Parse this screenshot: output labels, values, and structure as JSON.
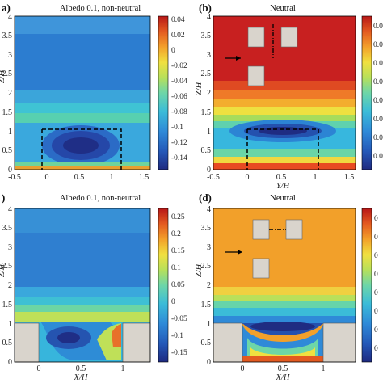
{
  "chart_data": [
    {
      "type": "heatmap",
      "panel_label": "a)",
      "title": "Albedo 0.1, non-neutral",
      "xlabel": "Y/H",
      "ylabel": "Z/H",
      "xlim": [
        -0.5,
        1.6
      ],
      "ylim": [
        0,
        4
      ],
      "xticks": [
        "-0.5",
        "0",
        "0.5",
        "1",
        "1.5"
      ],
      "yticks": [
        "0",
        "0.5",
        "1",
        "1.5",
        "2",
        "2.5",
        "3",
        "3.5",
        "4"
      ],
      "colorbar_ticks": [
        "0.04",
        "0.02",
        "0",
        "-0.02",
        "-0.04",
        "-0.06",
        "-0.08",
        "-0.1",
        "-0.12",
        "-0.14"
      ],
      "clim": [
        -0.15,
        0.05
      ]
    },
    {
      "type": "heatmap",
      "panel_label": "(b)",
      "title": "Neutral",
      "xlabel": "Y/H",
      "ylabel": "Z/H",
      "xlim": [
        -0.5,
        1.6
      ],
      "ylim": [
        0,
        4
      ],
      "xticks": [
        "-0.5",
        "0",
        "0.5",
        "1",
        "1.5"
      ],
      "yticks": [
        "0",
        "0.5",
        "1",
        "1.5",
        "2",
        "2.5",
        "3",
        "3.5",
        "4"
      ],
      "colorbar_ticks": [
        "0.0",
        "0.0",
        "0.0",
        "0.0",
        "0.0",
        "0.0",
        "0.0",
        "0.0"
      ]
    },
    {
      "type": "heatmap",
      "panel_label": ")",
      "title": "Albedo 0.1, non-neutral",
      "xlabel": "X/H",
      "ylabel": "Z/H",
      "xlim": [
        -0.5,
        1.6
      ],
      "ylim": [
        0,
        4
      ],
      "xticks": [
        "0",
        "0.5",
        "1"
      ],
      "yticks": [
        "0",
        "0.5",
        "1",
        "1.5",
        "2",
        "2.5",
        "3",
        "3.5",
        "4"
      ],
      "colorbar_ticks": [
        "0.25",
        "0.2",
        "0.15",
        "0.1",
        "0.05",
        "0",
        "-0.05",
        "-0.1",
        "-0.15"
      ],
      "clim": [
        -0.17,
        0.28
      ]
    },
    {
      "type": "heatmap",
      "panel_label": "(d)",
      "title": "Neutral",
      "xlabel": "X/H",
      "ylabel": "Z/H",
      "xlim": [
        -0.5,
        1.6
      ],
      "ylim": [
        0,
        4
      ],
      "xticks": [
        "0",
        "0.5",
        "1"
      ],
      "yticks": [
        "0",
        "0.5",
        "1",
        "1.5",
        "2",
        "2.5",
        "3",
        "3.5",
        "4"
      ],
      "colorbar_ticks": [
        "0",
        "0",
        "0",
        "0",
        "0",
        "0",
        "0",
        "0"
      ]
    }
  ],
  "colors": {
    "colormap": [
      "#1e2a80",
      "#2458b8",
      "#2f8ad8",
      "#3bbcd8",
      "#6dd6a8",
      "#b7e05a",
      "#f0e040",
      "#f3a02a",
      "#e35a20",
      "#b81818"
    ],
    "building": "#d9d4cc"
  }
}
